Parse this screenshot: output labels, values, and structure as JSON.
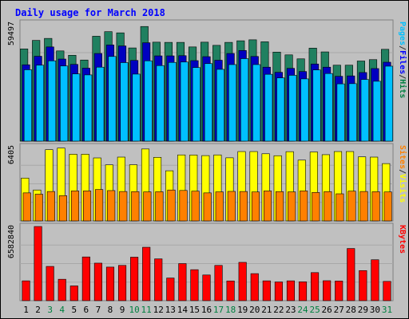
{
  "chart_data": {
    "type": "bar",
    "title": "Daily usage for March 2018",
    "days": [
      "1",
      "2",
      "3",
      "4",
      "5",
      "6",
      "7",
      "8",
      "9",
      "10",
      "11",
      "12",
      "13",
      "14",
      "15",
      "16",
      "17",
      "18",
      "19",
      "20",
      "21",
      "22",
      "23",
      "24",
      "25",
      "26",
      "27",
      "28",
      "29",
      "30",
      "31"
    ],
    "weekend_days": [
      "3",
      "4",
      "10",
      "11",
      "17",
      "18",
      "24",
      "25",
      "31"
    ],
    "panels": [
      {
        "id": "hits",
        "ymax": 59497,
        "ymax_label": "59497",
        "right_label": [
          "Pages",
          "/",
          "Files",
          "/",
          "Hits"
        ],
        "right_label_colors": [
          "#00c0ff",
          "#303030",
          "#0000ff",
          "#303030",
          "#008040"
        ],
        "series": [
          {
            "name": "Hits",
            "color": "#208060",
            "values": [
              46500,
              50800,
              51800,
              45500,
              43300,
              40900,
              52900,
              55200,
              54600,
              47000,
              57800,
              49900,
              49800,
              49800,
              47500,
              49900,
              48300,
              49800,
              50600,
              51100,
              50100,
              44900,
              43500,
              41500,
              46900,
              45000,
              38300,
              38300,
              40400,
              41100,
              46300
            ]
          },
          {
            "name": "Files",
            "color": "#0000c0",
            "values": [
              38500,
              42800,
              47500,
              41400,
              38700,
              36800,
              44200,
              48500,
              48000,
              40700,
              49600,
              43000,
              43000,
              43100,
              40600,
              42600,
              40800,
              44200,
              45700,
              42700,
              37300,
              34700,
              36700,
              35100,
              38900,
              37300,
              32700,
              32900,
              34600,
              36600,
              39800
            ]
          },
          {
            "name": "Pages",
            "color": "#00c0ff",
            "values": [
              36000,
              38300,
              40500,
              37900,
              33900,
              33400,
              37300,
              42700,
              39600,
              33800,
              40500,
              38100,
              39700,
              39900,
              37100,
              39100,
              36200,
              38600,
              41600,
              38600,
              33700,
              31900,
              33200,
              31400,
              35900,
              34100,
              28900,
              29000,
              31100,
              30200,
              37800
            ]
          }
        ]
      },
      {
        "id": "visits",
        "ymax": 6405,
        "ymax_label": "6405",
        "right_label": [
          "Sites",
          "/",
          "Visits"
        ],
        "right_label_colors": [
          "#ff8000",
          "#303030",
          "#ffff00"
        ],
        "series": [
          {
            "name": "Visits",
            "color": "#ffff00",
            "values": [
              3700,
              2670,
              6150,
              6290,
              5760,
              5760,
              5440,
              4840,
              5510,
              4850,
              6210,
              5490,
              4330,
              5700,
              5690,
              5640,
              5700,
              5450,
              5990,
              5990,
              5800,
              5630,
              5980,
              5250,
              5950,
              5720,
              5990,
              5990,
              5530,
              5510,
              4950
            ]
          },
          {
            "name": "Sites",
            "color": "#ff8000",
            "values": [
              2420,
              2310,
              2540,
              2180,
              2590,
              2590,
              2710,
              2620,
              2540,
              2530,
              2510,
              2520,
              2670,
              2630,
              2570,
              2420,
              2510,
              2550,
              2540,
              2500,
              2590,
              2530,
              2510,
              2590,
              2460,
              2530,
              2340,
              2570,
              2540,
              2520,
              2500
            ]
          }
        ]
      },
      {
        "id": "kbytes",
        "ymax": 6582840,
        "ymax_label": "6582840",
        "right_label": [
          "KBytes"
        ],
        "right_label_colors": [
          "#ff0000"
        ],
        "series": [
          {
            "name": "KBytes",
            "color": "#ff0000",
            "values": [
              1760000,
              6582840,
              3040000,
              1900000,
              1310000,
              3880000,
              3330000,
              2980000,
              3130000,
              3860000,
              4740000,
              3710000,
              2010000,
              3290000,
              2750000,
              2280000,
              3130000,
              1750000,
              3400000,
              2400000,
              1760000,
              1660000,
              1760000,
              1670000,
              2490000,
              1770000,
              1740000,
              4630000,
              2670000,
              3630000,
              1710000
            ]
          }
        ]
      }
    ]
  }
}
